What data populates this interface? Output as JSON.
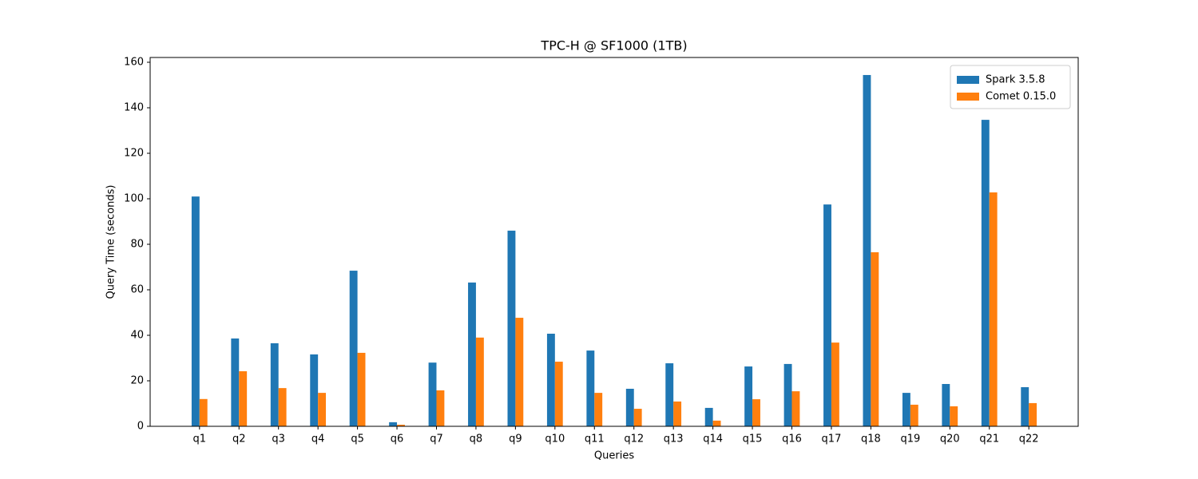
{
  "chart_data": {
    "type": "bar",
    "title": "TPC-H @ SF1000 (1TB)",
    "x_label": "Queries",
    "y_label": "Query Time (seconds)",
    "categories": [
      "q1",
      "q2",
      "q3",
      "q4",
      "q5",
      "q6",
      "q7",
      "q8",
      "q9",
      "q10",
      "q11",
      "q12",
      "q13",
      "q14",
      "q15",
      "q16",
      "q17",
      "q18",
      "q19",
      "q20",
      "q21",
      "q22"
    ],
    "series": [
      {
        "name": "Spark 3.5.8",
        "color": "#1f77b4",
        "values": [
          101,
          38.6,
          36.5,
          31.6,
          68.4,
          1.8,
          28,
          63.2,
          86,
          40.7,
          33.3,
          16.5,
          27.7,
          8.1,
          26.3,
          27.4,
          97.5,
          154.4,
          14.7,
          18.6,
          134.7,
          17.2
        ]
      },
      {
        "name": "Comet 0.15.0",
        "color": "#ff7f0e",
        "values": [
          12,
          24.2,
          16.8,
          14.7,
          32.3,
          0.7,
          15.8,
          39,
          47.7,
          28.4,
          14.7,
          7.7,
          10.9,
          2.5,
          11.9,
          15.4,
          36.8,
          76.5,
          9.5,
          8.8,
          102.8,
          10.2
        ]
      }
    ],
    "ylim": [
      0,
      160
    ],
    "yticks": [
      0,
      20,
      40,
      60,
      80,
      100,
      120,
      140,
      160
    ],
    "grid": false,
    "legend": "upper right"
  }
}
